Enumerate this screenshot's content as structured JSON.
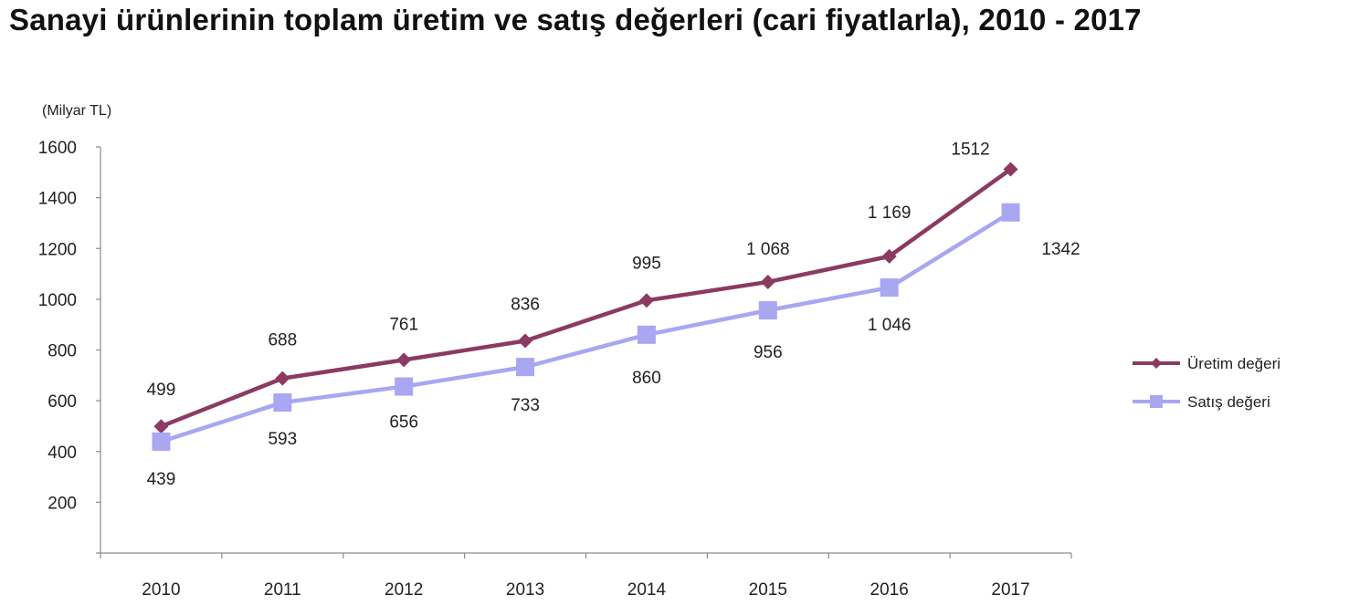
{
  "chart_data": {
    "type": "line",
    "title": "Sanayi ürünlerinin toplam üretim ve satış değerleri (cari fiyatlarla), 2010 - 2017",
    "unit_label": "(Milyar TL)",
    "categories": [
      "2010",
      "2011",
      "2012",
      "2013",
      "2014",
      "2015",
      "2016",
      "2017"
    ],
    "series": [
      {
        "name": "Üretim değeri",
        "values": [
          499,
          688,
          761,
          836,
          995,
          1068,
          1169,
          1512
        ],
        "labels": [
          "499",
          "688",
          "761",
          "836",
          "995",
          "1 068",
          "1 169",
          "1512"
        ],
        "color": "#8B3A62",
        "marker": "diamond"
      },
      {
        "name": "Satış değeri",
        "values": [
          439,
          593,
          656,
          733,
          860,
          956,
          1046,
          1342
        ],
        "labels": [
          "439",
          "593",
          "656",
          "733",
          "860",
          "956",
          "1 046",
          "1342"
        ],
        "color": "#A9A6F2",
        "marker": "square"
      }
    ],
    "yticks": [
      "200",
      "400",
      "600",
      "800",
      "1000",
      "1200",
      "1400",
      "1600"
    ],
    "ylim": [
      0,
      1600
    ],
    "grid": false,
    "legend_position": "right"
  }
}
